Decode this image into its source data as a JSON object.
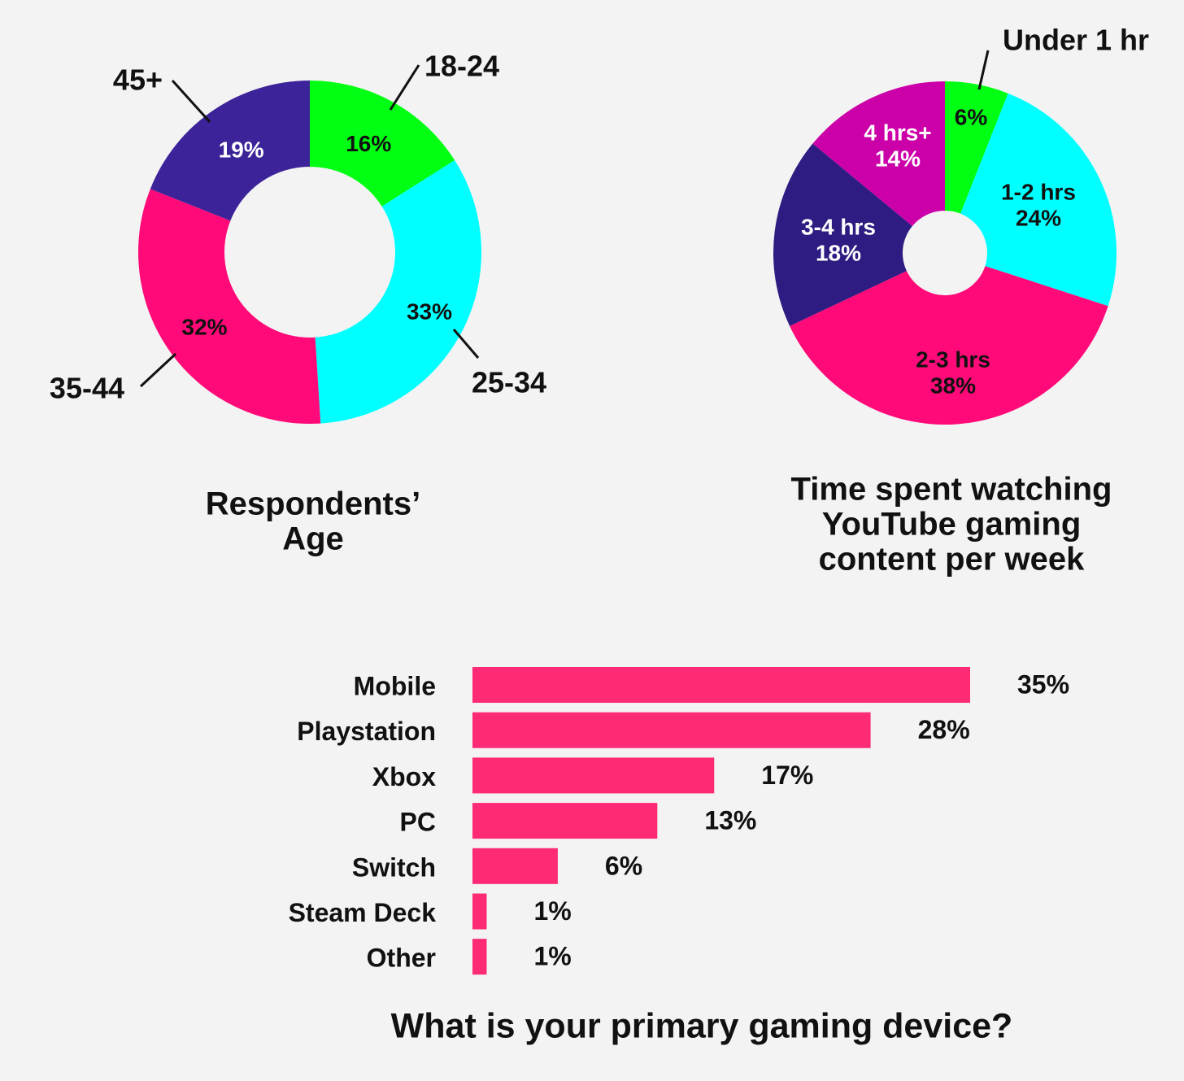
{
  "chart_data": [
    {
      "type": "pie",
      "variant": "donut",
      "title": "Respondents' Age",
      "title_lines": [
        "Respondents’",
        "Age"
      ],
      "categories": [
        "18-24",
        "25-34",
        "35-44",
        "45+"
      ],
      "values": [
        16,
        33,
        32,
        19
      ],
      "value_labels": [
        "16%",
        "33%",
        "32%",
        "19%"
      ],
      "colors": [
        "#00ff12",
        "#00ffff",
        "#ff0a78",
        "#3c2399"
      ],
      "value_label_colors": [
        "#111111",
        "#111111",
        "#111111",
        "#ffffff"
      ]
    },
    {
      "type": "pie",
      "title": "Time spent watching YouTube gaming content per week",
      "title_lines": [
        "Time spent watching",
        "YouTube gaming",
        "content per week"
      ],
      "categories": [
        "Under 1 hr",
        "1-2 hrs",
        "2-3 hrs",
        "3-4 hrs",
        "4 hrs+"
      ],
      "values": [
        6,
        24,
        38,
        18,
        14
      ],
      "value_labels": [
        "6%",
        "24%",
        "38%",
        "18%",
        "14%"
      ],
      "colors": [
        "#00ff12",
        "#00ffff",
        "#ff0a78",
        "#2f1c82",
        "#cc00a8"
      ],
      "value_label_colors": [
        "#111111",
        "#111111",
        "#111111",
        "#ffffff",
        "#ffffff"
      ]
    },
    {
      "type": "bar",
      "orientation": "horizontal",
      "title": "What is your primary gaming device?",
      "categories": [
        "Mobile",
        "Playstation",
        "Xbox",
        "PC",
        "Switch",
        "Steam Deck",
        "Other"
      ],
      "values": [
        35,
        28,
        17,
        13,
        6,
        1,
        1
      ],
      "value_labels": [
        "35%",
        "28%",
        "17%",
        "13%",
        "6%",
        "1%",
        "1%"
      ],
      "bar_color": "#ff2a75"
    }
  ]
}
